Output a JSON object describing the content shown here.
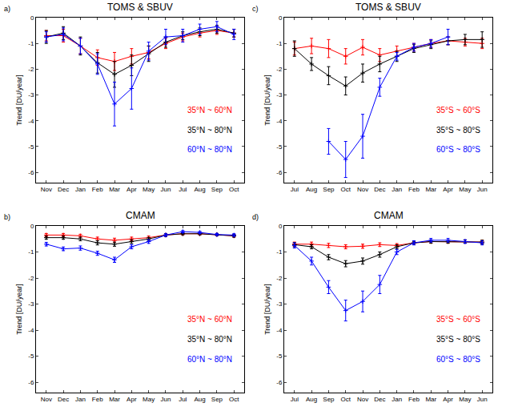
{
  "chart_data": [
    {
      "type": "line",
      "panel_label": "a)",
      "title": "TOMS & SBUV",
      "y_label": "Trend [DU/year]",
      "categories": [
        "Nov",
        "Dec",
        "Jan",
        "Feb",
        "Mar",
        "Apr",
        "May",
        "Jun",
        "Jul",
        "Aug",
        "Sep",
        "Oct"
      ],
      "ylim": [
        -6.4,
        0
      ],
      "yticks": [
        -6,
        -5,
        -4,
        -3,
        -2,
        -1,
        0
      ],
      "grid": false,
      "series": [
        {
          "name": "35°N ~ 60°N",
          "color": "#ff0000",
          "values": [
            -0.7,
            -0.7,
            -1.1,
            -1.55,
            -1.7,
            -1.5,
            -1.35,
            -1.0,
            -0.75,
            -0.6,
            -0.5,
            -0.6
          ],
          "errors": [
            0.2,
            0.25,
            0.3,
            0.3,
            0.35,
            0.3,
            0.25,
            0.2,
            0.15,
            0.15,
            0.15,
            0.15
          ]
        },
        {
          "name": "35°N ~ 80°N",
          "color": "#000000",
          "values": [
            -0.75,
            -0.6,
            -1.1,
            -1.75,
            -2.2,
            -1.85,
            -1.4,
            -0.95,
            -0.7,
            -0.55,
            -0.45,
            -0.6
          ],
          "errors": [
            0.25,
            0.25,
            0.35,
            0.4,
            0.5,
            0.4,
            0.3,
            0.2,
            0.15,
            0.15,
            0.15,
            0.15
          ]
        },
        {
          "name": "60°N ~ 80°N",
          "color": "#0000ff",
          "values": [
            -0.75,
            -0.65,
            -1.1,
            -1.8,
            -3.35,
            -2.75,
            -1.3,
            -0.75,
            -0.7,
            -0.45,
            -0.35,
            -0.65
          ],
          "errors": [
            0.2,
            0.25,
            0.3,
            0.4,
            0.85,
            0.8,
            0.35,
            0.3,
            0.25,
            0.2,
            0.2,
            0.2
          ]
        }
      ]
    },
    {
      "type": "line",
      "panel_label": "b)",
      "title": "CMAM",
      "y_label": "Trend [DU/year]",
      "categories": [
        "Nov",
        "Dec",
        "Jan",
        "Feb",
        "Mar",
        "Apr",
        "May",
        "Jun",
        "Jul",
        "Aug",
        "Sep",
        "Oct"
      ],
      "ylim": [
        -6.4,
        0
      ],
      "yticks": [
        -6,
        -5,
        -4,
        -3,
        -2,
        -1,
        0
      ],
      "grid": false,
      "series": [
        {
          "name": "35°N ~ 60°N",
          "color": "#ff0000",
          "values": [
            -0.35,
            -0.35,
            -0.38,
            -0.5,
            -0.55,
            -0.5,
            -0.45,
            -0.35,
            -0.3,
            -0.3,
            -0.33,
            -0.38
          ],
          "errors": [
            0.06,
            0.06,
            0.06,
            0.07,
            0.08,
            0.07,
            0.06,
            0.05,
            0.04,
            0.04,
            0.04,
            0.05
          ]
        },
        {
          "name": "35°N ~ 80°N",
          "color": "#000000",
          "values": [
            -0.45,
            -0.45,
            -0.5,
            -0.65,
            -0.7,
            -0.6,
            -0.5,
            -0.35,
            -0.3,
            -0.3,
            -0.33,
            -0.38
          ],
          "errors": [
            0.06,
            0.06,
            0.07,
            0.08,
            0.08,
            0.07,
            0.06,
            0.05,
            0.04,
            0.04,
            0.04,
            0.05
          ]
        },
        {
          "name": "60°N ~ 80°N",
          "color": "#0000ff",
          "values": [
            -0.7,
            -0.88,
            -0.85,
            -1.05,
            -1.3,
            -0.8,
            -0.6,
            -0.35,
            -0.22,
            -0.25,
            -0.33,
            -0.35
          ],
          "errors": [
            0.07,
            0.07,
            0.08,
            0.08,
            0.1,
            0.08,
            0.07,
            0.05,
            0.04,
            0.04,
            0.04,
            0.05
          ]
        }
      ]
    },
    {
      "type": "line",
      "panel_label": "c)",
      "title": "TOMS & SBUV",
      "y_label": "Trend [DU/year]",
      "categories": [
        "Jul",
        "Aug",
        "Sep",
        "Oct",
        "Nov",
        "Dec",
        "Jan",
        "Feb",
        "Mar",
        "Apr",
        "May",
        "Jun"
      ],
      "ylim": [
        -6.4,
        0
      ],
      "yticks": [
        -6,
        -5,
        -4,
        -3,
        -2,
        -1,
        0
      ],
      "grid": false,
      "series": [
        {
          "name": "35°S ~ 60°S",
          "color": "#ff0000",
          "values": [
            -1.2,
            -1.1,
            -1.2,
            -1.5,
            -1.15,
            -1.45,
            -1.3,
            -1.15,
            -1.0,
            -0.9,
            -0.95,
            -1.0
          ],
          "errors": [
            0.25,
            0.3,
            0.35,
            0.3,
            0.3,
            0.25,
            0.2,
            0.15,
            0.15,
            0.15,
            0.15,
            0.2
          ]
        },
        {
          "name": "35°S ~ 80°S",
          "color": "#000000",
          "values": [
            -1.2,
            -1.8,
            -2.25,
            -2.65,
            -2.15,
            -1.8,
            -1.5,
            -1.2,
            -1.05,
            -0.9,
            -0.85,
            -0.85
          ],
          "errors": [
            0.3,
            0.25,
            0.35,
            0.35,
            0.35,
            0.3,
            0.2,
            0.15,
            0.15,
            0.15,
            0.2,
            0.3
          ]
        },
        {
          "name": "60°S ~ 80°S",
          "color": "#0000ff",
          "values": [
            null,
            null,
            -4.8,
            -5.5,
            -4.6,
            -2.7,
            -1.5,
            -1.15,
            -1.0,
            -0.75,
            null,
            null
          ],
          "errors": [
            null,
            null,
            0.5,
            0.7,
            0.85,
            0.35,
            0.15,
            0.15,
            0.15,
            0.3,
            null,
            null
          ]
        }
      ]
    },
    {
      "type": "line",
      "panel_label": "d)",
      "title": "CMAM",
      "y_label": "Trend [DU/year]",
      "categories": [
        "Jul",
        "Aug",
        "Sep",
        "Oct",
        "Nov",
        "Dec",
        "Jan",
        "Feb",
        "Mar",
        "Apr",
        "May",
        "Jun"
      ],
      "ylim": [
        -6.4,
        0
      ],
      "yticks": [
        -6,
        -5,
        -4,
        -3,
        -2,
        -1,
        0
      ],
      "grid": false,
      "series": [
        {
          "name": "35°S ~ 60°S",
          "color": "#ff0000",
          "values": [
            -0.7,
            -0.7,
            -0.75,
            -0.8,
            -0.78,
            -0.72,
            -0.75,
            -0.65,
            -0.6,
            -0.6,
            -0.6,
            -0.62
          ],
          "errors": [
            0.08,
            0.08,
            0.08,
            0.08,
            0.08,
            0.07,
            0.07,
            0.06,
            0.06,
            0.06,
            0.06,
            0.07
          ]
        },
        {
          "name": "35°S ~ 80°S",
          "color": "#000000",
          "values": [
            -0.72,
            -0.8,
            -1.2,
            -1.45,
            -1.35,
            -1.1,
            -0.8,
            -0.65,
            -0.6,
            -0.6,
            -0.6,
            -0.62
          ],
          "errors": [
            0.08,
            0.08,
            0.1,
            0.12,
            0.12,
            0.1,
            0.08,
            0.06,
            0.06,
            0.06,
            0.06,
            0.07
          ]
        },
        {
          "name": "60°S ~ 80°S",
          "color": "#0000ff",
          "values": [
            -0.75,
            -1.35,
            -2.35,
            -3.25,
            -2.9,
            -2.25,
            -1.0,
            -0.65,
            -0.55,
            -0.55,
            -0.6,
            -0.65
          ],
          "errors": [
            0.1,
            0.15,
            0.25,
            0.4,
            0.4,
            0.35,
            0.1,
            0.08,
            0.07,
            0.07,
            0.07,
            0.08
          ]
        }
      ]
    }
  ]
}
